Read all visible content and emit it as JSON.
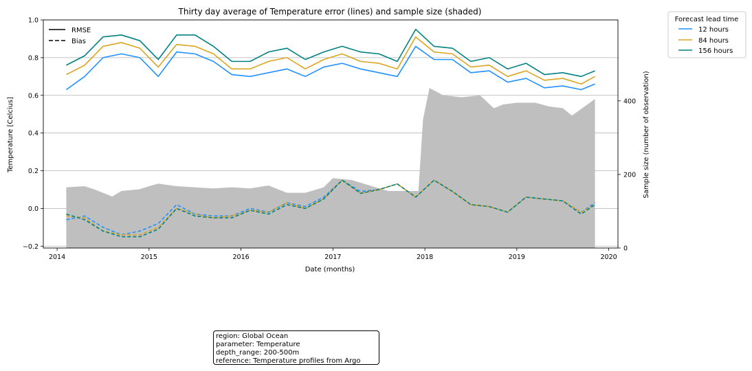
{
  "chart_data": {
    "type": "line",
    "title": "Thirty day average of Temperature error (lines) and sample size (shaded)",
    "xlabel": "Date (months)",
    "ylabel": "Temperature [Celcius]",
    "y2label": "Sample size (number of observation)",
    "xlim": [
      2013.85,
      2020.1
    ],
    "ylim": [
      -0.21,
      1.0
    ],
    "y2lim": [
      0,
      620
    ],
    "x_ticks": [
      "2014",
      "2015",
      "2016",
      "2017",
      "2018",
      "2019",
      "2020"
    ],
    "y_ticks": [
      "−0.2",
      "0.0",
      "0.2",
      "0.4",
      "0.6",
      "0.8",
      "1.0"
    ],
    "y2_ticks": [
      "0",
      "200",
      "400"
    ],
    "grid": "horizontal",
    "line_styles_legend": {
      "position": "top-left",
      "entries": [
        {
          "label": "RMSE",
          "style": "solid"
        },
        {
          "label": "Bias",
          "style": "dashed"
        }
      ]
    },
    "legend": {
      "title": "Forecast lead time",
      "position": "outside-right",
      "entries": [
        {
          "label": "12 hours",
          "color": "#1e90ff"
        },
        {
          "label": "84 hours",
          "color": "#daa520"
        },
        {
          "label": "156 hours",
          "color": "#008080"
        }
      ]
    },
    "x": [
      2014.1,
      2014.3,
      2014.5,
      2014.7,
      2014.9,
      2015.1,
      2015.3,
      2015.5,
      2015.7,
      2015.9,
      2016.1,
      2016.3,
      2016.5,
      2016.7,
      2016.9,
      2017.1,
      2017.3,
      2017.5,
      2017.7,
      2017.9,
      2018.1,
      2018.3,
      2018.5,
      2018.7,
      2018.9,
      2019.1,
      2019.3,
      2019.5,
      2019.7,
      2019.85
    ],
    "series": [
      {
        "name": "12 hours",
        "metric": "RMSE",
        "color": "#1e90ff",
        "values": [
          0.63,
          0.7,
          0.8,
          0.82,
          0.8,
          0.7,
          0.83,
          0.82,
          0.78,
          0.71,
          0.7,
          0.72,
          0.74,
          0.7,
          0.75,
          0.77,
          0.74,
          0.72,
          0.7,
          0.86,
          0.79,
          0.79,
          0.72,
          0.73,
          0.67,
          0.69,
          0.64,
          0.65,
          0.63,
          0.66
        ]
      },
      {
        "name": "84 hours",
        "metric": "RMSE",
        "color": "#daa520",
        "values": [
          0.71,
          0.76,
          0.86,
          0.88,
          0.85,
          0.75,
          0.87,
          0.86,
          0.82,
          0.74,
          0.74,
          0.78,
          0.8,
          0.74,
          0.79,
          0.82,
          0.78,
          0.77,
          0.74,
          0.91,
          0.83,
          0.82,
          0.75,
          0.76,
          0.7,
          0.73,
          0.68,
          0.69,
          0.66,
          0.7
        ]
      },
      {
        "name": "156 hours",
        "metric": "RMSE",
        "color": "#008080",
        "values": [
          0.76,
          0.81,
          0.91,
          0.92,
          0.89,
          0.79,
          0.92,
          0.92,
          0.86,
          0.78,
          0.78,
          0.83,
          0.85,
          0.79,
          0.83,
          0.86,
          0.83,
          0.82,
          0.78,
          0.95,
          0.86,
          0.85,
          0.78,
          0.8,
          0.74,
          0.77,
          0.71,
          0.72,
          0.7,
          0.73
        ]
      },
      {
        "name": "12 hours",
        "metric": "Bias",
        "color": "#1e90ff",
        "values": [
          -0.06,
          -0.04,
          -0.1,
          -0.14,
          -0.12,
          -0.08,
          0.02,
          -0.03,
          -0.04,
          -0.04,
          0.0,
          -0.02,
          0.03,
          0.01,
          0.06,
          0.15,
          0.09,
          0.1,
          0.13,
          0.06,
          0.15,
          0.09,
          0.02,
          0.01,
          -0.02,
          0.06,
          0.05,
          0.04,
          -0.02,
          0.03
        ]
      },
      {
        "name": "84 hours",
        "metric": "Bias",
        "color": "#daa520",
        "values": [
          -0.04,
          -0.05,
          -0.12,
          -0.14,
          -0.14,
          -0.1,
          0.0,
          -0.03,
          -0.05,
          -0.04,
          -0.01,
          -0.02,
          0.03,
          0.0,
          0.05,
          0.15,
          0.08,
          0.1,
          0.13,
          0.06,
          0.15,
          0.09,
          0.02,
          0.01,
          -0.02,
          0.06,
          0.05,
          0.04,
          -0.02,
          0.02
        ]
      },
      {
        "name": "156 hours",
        "metric": "Bias",
        "color": "#008080",
        "values": [
          -0.03,
          -0.06,
          -0.12,
          -0.15,
          -0.15,
          -0.11,
          0.0,
          -0.04,
          -0.05,
          -0.05,
          -0.01,
          -0.03,
          0.02,
          0.0,
          0.05,
          0.15,
          0.08,
          0.1,
          0.13,
          0.06,
          0.15,
          0.09,
          0.02,
          0.01,
          -0.02,
          0.06,
          0.05,
          0.04,
          -0.03,
          0.02
        ]
      }
    ],
    "sample_size": {
      "x": [
        2014.1,
        2014.3,
        2014.4,
        2014.6,
        2014.7,
        2014.9,
        2015.0,
        2015.1,
        2015.3,
        2015.5,
        2015.7,
        2015.9,
        2016.1,
        2016.3,
        2016.5,
        2016.7,
        2016.9,
        2017.0,
        2017.2,
        2017.4,
        2017.6,
        2017.8,
        2017.93,
        2017.98,
        2018.05,
        2018.2,
        2018.4,
        2018.6,
        2018.75,
        2018.85,
        2019.0,
        2019.2,
        2019.35,
        2019.5,
        2019.6,
        2019.85
      ],
      "values": [
        165,
        168,
        160,
        140,
        155,
        160,
        168,
        175,
        168,
        165,
        162,
        165,
        162,
        170,
        150,
        150,
        165,
        190,
        185,
        170,
        155,
        155,
        155,
        350,
        435,
        415,
        410,
        415,
        380,
        390,
        395,
        395,
        385,
        380,
        360,
        405
      ]
    }
  },
  "info_box": {
    "lines": [
      "region: Global Ocean",
      "parameter: Temperature",
      "depth_range: 200-500m",
      "reference: Temperature profiles from Argo"
    ]
  }
}
